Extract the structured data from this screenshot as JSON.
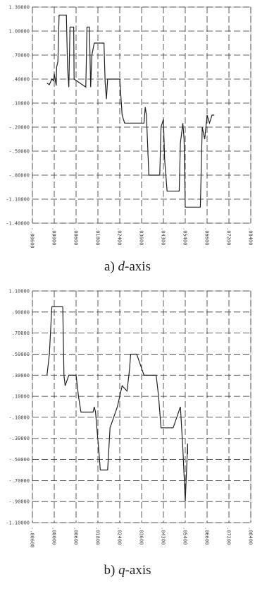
{
  "chart_data": [
    {
      "type": "line",
      "caption_prefix": "a) ",
      "caption_var": "d",
      "caption_suffix": "-axis",
      "y_ticks": [
        "1.30000",
        "1.00000",
        ".70000",
        ".40000",
        ".10000",
        "-.20000",
        "-.50000",
        "-.80000",
        "-1.10000",
        "-1.40000"
      ],
      "x_ticks": [
        "-.00600",
        ".00000",
        ".00600",
        ".01800",
        ".02400",
        ".03600",
        ".04300",
        ".05400",
        ".06600",
        ".07200",
        ".08400"
      ],
      "ylim": [
        -1.4,
        1.3
      ],
      "xlim": [
        -0.006,
        0.084
      ],
      "grid": true,
      "series": [
        {
          "x": [
            0.0,
            0.001,
            0.002,
            0.0028,
            0.003,
            0.0038,
            0.004,
            0.0045,
            0.005,
            0.0052,
            0.008,
            0.0085,
            0.009,
            0.0095,
            0.01,
            0.011,
            0.0112,
            0.016,
            0.0165,
            0.017,
            0.0175,
            0.018,
            0.0185,
            0.0195,
            0.02,
            0.0235,
            0.024,
            0.0245,
            0.025,
            0.026,
            0.03,
            0.031,
            0.032,
            0.035,
            0.036,
            0.04,
            0.0405,
            0.041,
            0.042,
            0.0425,
            0.046,
            0.0465,
            0.047,
            0.048,
            0.0485,
            0.0495,
            0.054,
            0.0545,
            0.055,
            0.056,
            0.0565,
            0.057,
            0.063,
            0.0632,
            0.064,
            0.065,
            0.066,
            0.067,
            0.0675,
            0.068,
            0.069
          ],
          "y": [
            0.35,
            0.33,
            0.4,
            0.38,
            0.47,
            0.32,
            0.55,
            0.62,
            1.2,
            1.2,
            1.2,
            0.55,
            0.3,
            1.05,
            1.05,
            1.05,
            0.4,
            0.3,
            1.05,
            1.05,
            1.05,
            0.3,
            0.7,
            0.85,
            0.85,
            0.85,
            0.35,
            0.15,
            0.4,
            0.4,
            0.4,
            -0.05,
            -0.15,
            -0.15,
            -0.15,
            -0.15,
            0.05,
            -0.05,
            -0.8,
            -0.8,
            -0.8,
            -0.8,
            -0.2,
            -0.1,
            -0.6,
            -1.0,
            -1.0,
            -1.0,
            -0.4,
            -0.15,
            -0.35,
            -1.2,
            -1.2,
            -1.2,
            -0.2,
            -0.35,
            -0.05,
            -0.15,
            -0.1,
            -0.05,
            -0.05
          ]
        }
      ]
    },
    {
      "type": "line",
      "caption_prefix": "b) ",
      "caption_var": "q",
      "caption_suffix": "-axis",
      "y_ticks": [
        "1.10000",
        ".90000",
        ".70000",
        ".50000",
        ".30000",
        ".10000",
        "-.10000",
        "-.30000",
        "-.50000",
        "-.70000",
        "-.90000",
        "-1.10000"
      ],
      "x_ticks": [
        "-.00600",
        ".00000",
        ".00600",
        ".01800",
        ".02400",
        ".03600",
        ".04300",
        ".05400",
        ".06600",
        ".07200",
        ".08400"
      ],
      "ylim": [
        -1.1,
        1.1
      ],
      "xlim": [
        -0.006,
        0.084
      ],
      "grid": true,
      "series": [
        {
          "x": [
            0.0,
            0.001,
            0.002,
            0.006,
            0.0065,
            0.007,
            0.0075,
            0.009,
            0.01,
            0.012,
            0.013,
            0.014,
            0.018,
            0.019,
            0.0195,
            0.02,
            0.0215,
            0.022,
            0.023,
            0.025,
            0.026,
            0.0275,
            0.029,
            0.03,
            0.031,
            0.033,
            0.034,
            0.0345,
            0.035,
            0.036,
            0.037,
            0.04,
            0.041,
            0.042,
            0.045,
            0.046,
            0.047,
            0.05,
            0.051,
            0.052,
            0.055,
            0.056,
            0.057,
            0.058,
            0.058
          ],
          "y": [
            0.3,
            0.5,
            0.95,
            0.95,
            0.95,
            0.3,
            0.2,
            0.3,
            0.3,
            0.3,
            0.1,
            -0.05,
            -0.05,
            -0.05,
            0.0,
            -0.05,
            -0.45,
            -0.6,
            -0.6,
            -0.6,
            -0.2,
            -0.1,
            0.0,
            0.1,
            0.2,
            0.15,
            0.35,
            0.5,
            0.5,
            0.5,
            0.5,
            0.3,
            0.3,
            0.3,
            0.3,
            0.1,
            -0.2,
            -0.2,
            -0.2,
            -0.2,
            0.0,
            -0.4,
            -0.9,
            -0.35,
            -0.45
          ]
        }
      ]
    }
  ]
}
